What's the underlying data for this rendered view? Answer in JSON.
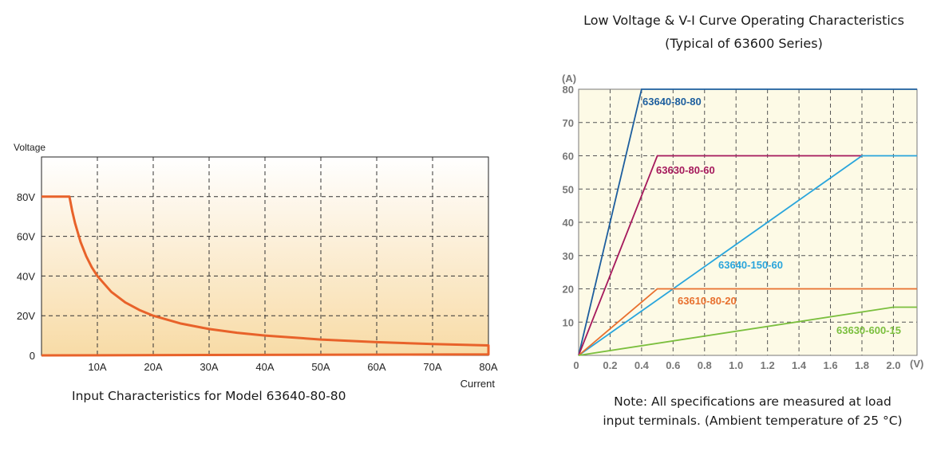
{
  "chart_data": [
    {
      "type": "line",
      "title": "Input Characteristics for Model 63640-80-80",
      "xlabel": "Current",
      "ylabel": "Voltage",
      "xlim": [
        0,
        80
      ],
      "ylim": [
        0,
        100
      ],
      "x_ticks": [
        "10A",
        "20A",
        "30A",
        "40A",
        "50A",
        "60A",
        "70A",
        "80A"
      ],
      "x_tick_values": [
        10,
        20,
        30,
        40,
        50,
        60,
        70,
        80
      ],
      "y_ticks": [
        "0",
        "20V",
        "40V",
        "60V",
        "80V"
      ],
      "y_tick_values": [
        0,
        20,
        40,
        60,
        80
      ],
      "grid": true,
      "grid_style": "dashed",
      "background": "gradient white to light orange",
      "colors": {
        "line": "#e8622a",
        "bg_top": "#ffffff",
        "bg_bottom": "#f8dba6"
      },
      "series": [
        {
          "points": [
            [
              0,
              80
            ],
            [
              5,
              80
            ],
            [
              5.5,
              72.7
            ],
            [
              6,
              66.7
            ],
            [
              7,
              57.1
            ],
            [
              8,
              50
            ],
            [
              9,
              44.4
            ],
            [
              10,
              40
            ],
            [
              12.5,
              32
            ],
            [
              15,
              26.7
            ],
            [
              17.5,
              22.9
            ],
            [
              20,
              20
            ],
            [
              25,
              16
            ],
            [
              30,
              13.3
            ],
            [
              35,
              11.4
            ],
            [
              40,
              10
            ],
            [
              50,
              8
            ],
            [
              60,
              6.67
            ],
            [
              70,
              5.71
            ],
            [
              80,
              5
            ],
            [
              80,
              0.5
            ],
            [
              0,
              0
            ]
          ]
        }
      ]
    },
    {
      "type": "line",
      "title": "Low Voltage & V-I Curve Operating Characteristics",
      "subtitle": "(Typical of 63600 Series)",
      "xlabel": "(V)",
      "ylabel": "(A)",
      "xlim": [
        0,
        2.15
      ],
      "ylim": [
        0,
        80
      ],
      "x_ticks": [
        "0",
        "0.2",
        "0.4",
        "0.6",
        "0.8",
        "1.0",
        "1.2",
        "1.4",
        "1.6",
        "1.8",
        "2.0"
      ],
      "x_tick_values": [
        0,
        0.2,
        0.4,
        0.6,
        0.8,
        1.0,
        1.2,
        1.4,
        1.6,
        1.8,
        2.0
      ],
      "y_ticks": [
        "10",
        "20",
        "30",
        "40",
        "50",
        "60",
        "70",
        "80"
      ],
      "y_tick_values": [
        10,
        20,
        30,
        40,
        50,
        60,
        70,
        80
      ],
      "grid": true,
      "grid_style": "dashed",
      "colors": {
        "background": "#fdfae6"
      },
      "series": [
        {
          "name": "63640-80-80",
          "color": "#1d5e9e",
          "points": [
            [
              0,
              0
            ],
            [
              0.4,
              80
            ],
            [
              2.15,
              80
            ]
          ]
        },
        {
          "name": "63630-80-60",
          "color": "#a5195c",
          "points": [
            [
              0,
              0
            ],
            [
              0.5,
              60
            ],
            [
              1.8,
              60
            ]
          ]
        },
        {
          "name": "63640-150-60",
          "color": "#29a5dc",
          "points": [
            [
              0,
              0
            ],
            [
              1.8,
              60
            ],
            [
              2.15,
              60
            ]
          ]
        },
        {
          "name": "63610-80-20",
          "color": "#e8702e",
          "points": [
            [
              0,
              0
            ],
            [
              0.5,
              20
            ],
            [
              2.15,
              20
            ]
          ]
        },
        {
          "name": "63630-600-15",
          "color": "#7bbf3e",
          "points": [
            [
              0,
              0
            ],
            [
              2.0,
              14.5
            ],
            [
              2.15,
              14.5
            ]
          ]
        }
      ]
    }
  ],
  "note": {
    "line1": "Note: All specifications are measured at load",
    "line2": "input terminals. (Ambient temperature of 25 °C)"
  }
}
